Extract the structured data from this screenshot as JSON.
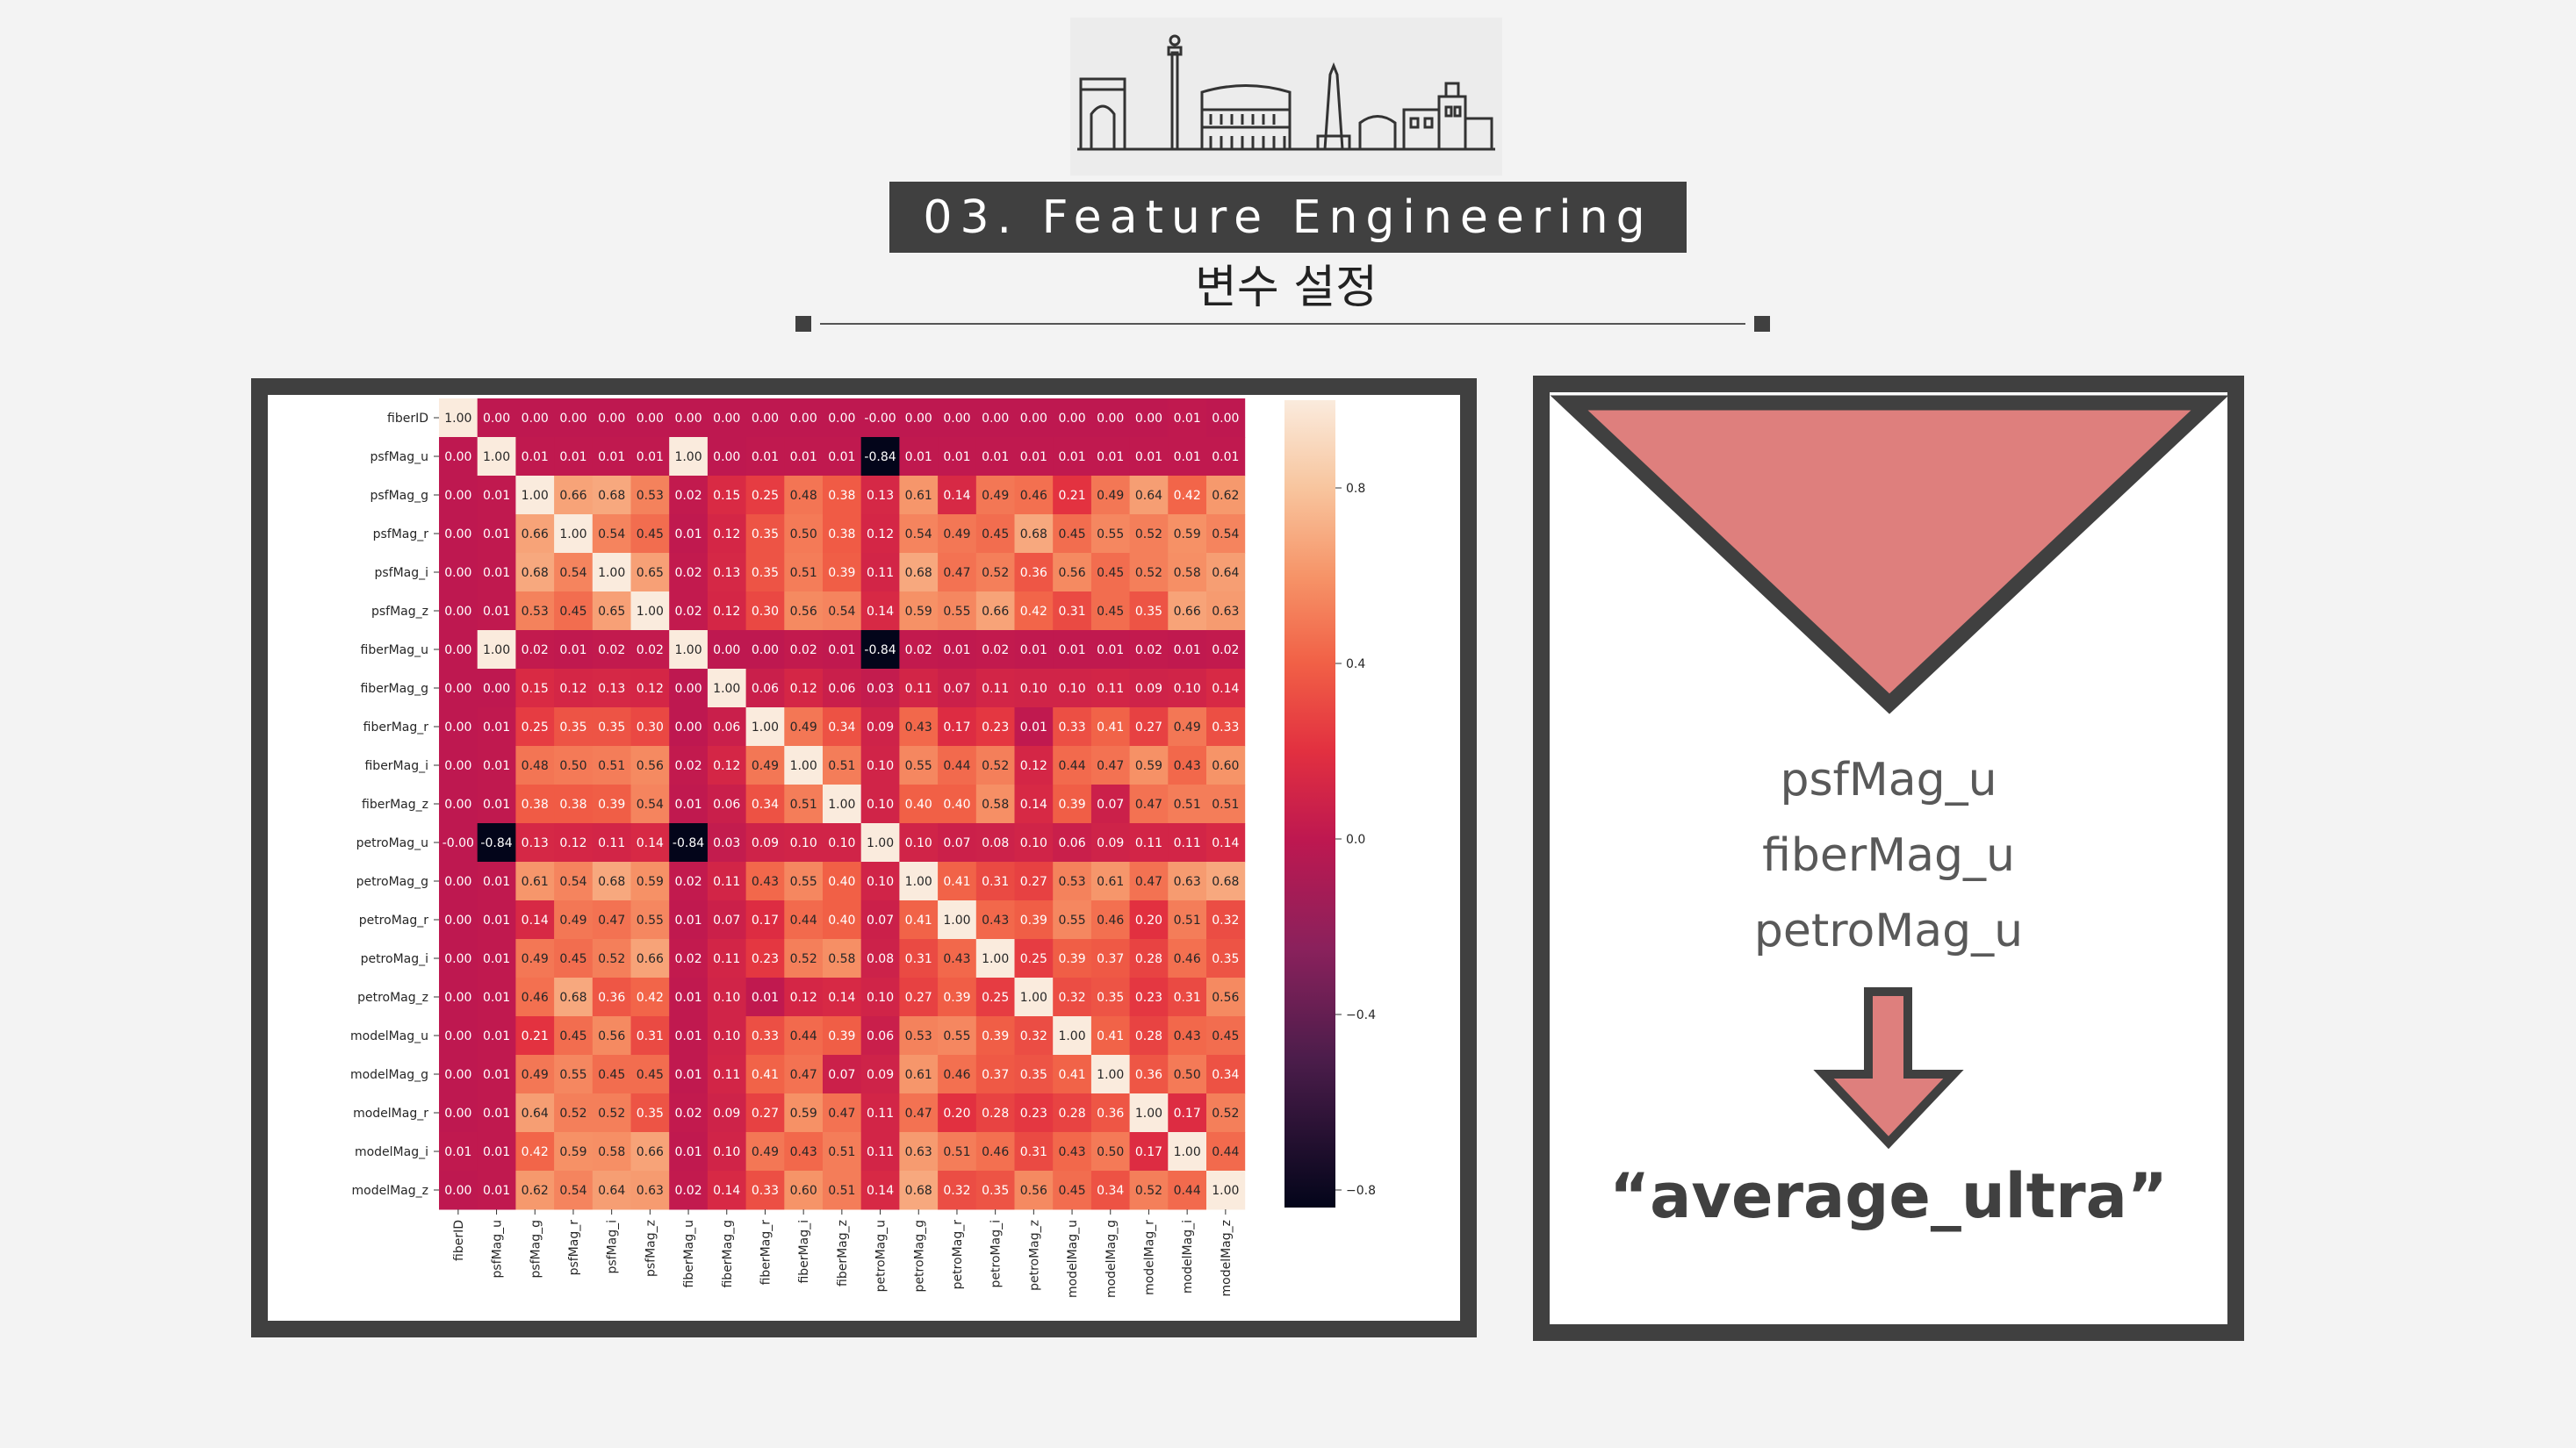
{
  "slide": {
    "section_title": "03. Feature Engineering",
    "subtitle": "변수 설정"
  },
  "right_panel": {
    "variables": [
      "psfMag_u",
      "fiberMag_u",
      "petroMag_u"
    ],
    "result": "“average_ultra”",
    "accent_color": "#de7f7d",
    "frame_color": "#404040"
  },
  "chart_data": {
    "type": "heatmap",
    "title": "",
    "labels": [
      "fiberID",
      "psfMag_u",
      "psfMag_g",
      "psfMag_r",
      "psfMag_i",
      "psfMag_z",
      "fiberMag_u",
      "fiberMag_g",
      "fiberMag_r",
      "fiberMag_i",
      "fiberMag_z",
      "petroMag_u",
      "petroMag_g",
      "petroMag_r",
      "petroMag_i",
      "petroMag_z",
      "modelMag_u",
      "modelMag_g",
      "modelMag_r",
      "modelMag_i",
      "modelMag_z"
    ],
    "matrix": [
      [
        "1.00",
        "0.00",
        "0.00",
        "0.00",
        "0.00",
        "0.00",
        "0.00",
        "0.00",
        "0.00",
        "0.00",
        "0.00",
        "-0.00",
        "0.00",
        "0.00",
        "0.00",
        "0.00",
        "0.00",
        "0.00",
        "0.00",
        "0.01",
        "0.00"
      ],
      [
        "0.00",
        "1.00",
        "0.01",
        "0.01",
        "0.01",
        "0.01",
        "1.00",
        "0.00",
        "0.01",
        "0.01",
        "0.01",
        "-0.84",
        "0.01",
        "0.01",
        "0.01",
        "0.01",
        "0.01",
        "0.01",
        "0.01",
        "0.01",
        "0.01"
      ],
      [
        "0.00",
        "0.01",
        "1.00",
        "0.66",
        "0.68",
        "0.53",
        "0.02",
        "0.15",
        "0.25",
        "0.48",
        "0.38",
        "0.13",
        "0.61",
        "0.14",
        "0.49",
        "0.46",
        "0.21",
        "0.49",
        "0.64",
        "0.42",
        "0.62"
      ],
      [
        "0.00",
        "0.01",
        "0.66",
        "1.00",
        "0.54",
        "0.45",
        "0.01",
        "0.12",
        "0.35",
        "0.50",
        "0.38",
        "0.12",
        "0.54",
        "0.49",
        "0.45",
        "0.68",
        "0.45",
        "0.55",
        "0.52",
        "0.59",
        "0.54"
      ],
      [
        "0.00",
        "0.01",
        "0.68",
        "0.54",
        "1.00",
        "0.65",
        "0.02",
        "0.13",
        "0.35",
        "0.51",
        "0.39",
        "0.11",
        "0.68",
        "0.47",
        "0.52",
        "0.36",
        "0.56",
        "0.45",
        "0.52",
        "0.58",
        "0.64"
      ],
      [
        "0.00",
        "0.01",
        "0.53",
        "0.45",
        "0.65",
        "1.00",
        "0.02",
        "0.12",
        "0.30",
        "0.56",
        "0.54",
        "0.14",
        "0.59",
        "0.55",
        "0.66",
        "0.42",
        "0.31",
        "0.45",
        "0.35",
        "0.66",
        "0.63"
      ],
      [
        "0.00",
        "1.00",
        "0.02",
        "0.01",
        "0.02",
        "0.02",
        "1.00",
        "0.00",
        "0.00",
        "0.02",
        "0.01",
        "-0.84",
        "0.02",
        "0.01",
        "0.02",
        "0.01",
        "0.01",
        "0.01",
        "0.02",
        "0.01",
        "0.02"
      ],
      [
        "0.00",
        "0.00",
        "0.15",
        "0.12",
        "0.13",
        "0.12",
        "0.00",
        "1.00",
        "0.06",
        "0.12",
        "0.06",
        "0.03",
        "0.11",
        "0.07",
        "0.11",
        "0.10",
        "0.10",
        "0.11",
        "0.09",
        "0.10",
        "0.14"
      ],
      [
        "0.00",
        "0.01",
        "0.25",
        "0.35",
        "0.35",
        "0.30",
        "0.00",
        "0.06",
        "1.00",
        "0.49",
        "0.34",
        "0.09",
        "0.43",
        "0.17",
        "0.23",
        "0.01",
        "0.33",
        "0.41",
        "0.27",
        "0.49",
        "0.33"
      ],
      [
        "0.00",
        "0.01",
        "0.48",
        "0.50",
        "0.51",
        "0.56",
        "0.02",
        "0.12",
        "0.49",
        "1.00",
        "0.51",
        "0.10",
        "0.55",
        "0.44",
        "0.52",
        "0.12",
        "0.44",
        "0.47",
        "0.59",
        "0.43",
        "0.60"
      ],
      [
        "0.00",
        "0.01",
        "0.38",
        "0.38",
        "0.39",
        "0.54",
        "0.01",
        "0.06",
        "0.34",
        "0.51",
        "1.00",
        "0.10",
        "0.40",
        "0.40",
        "0.58",
        "0.14",
        "0.39",
        "0.07",
        "0.47",
        "0.51",
        "0.51"
      ],
      [
        "-0.00",
        "-0.84",
        "0.13",
        "0.12",
        "0.11",
        "0.14",
        "-0.84",
        "0.03",
        "0.09",
        "0.10",
        "0.10",
        "1.00",
        "0.10",
        "0.07",
        "0.08",
        "0.10",
        "0.06",
        "0.09",
        "0.11",
        "0.11",
        "0.14"
      ],
      [
        "0.00",
        "0.01",
        "0.61",
        "0.54",
        "0.68",
        "0.59",
        "0.02",
        "0.11",
        "0.43",
        "0.55",
        "0.40",
        "0.10",
        "1.00",
        "0.41",
        "0.31",
        "0.27",
        "0.53",
        "0.61",
        "0.47",
        "0.63",
        "0.68"
      ],
      [
        "0.00",
        "0.01",
        "0.14",
        "0.49",
        "0.47",
        "0.55",
        "0.01",
        "0.07",
        "0.17",
        "0.44",
        "0.40",
        "0.07",
        "0.41",
        "1.00",
        "0.43",
        "0.39",
        "0.55",
        "0.46",
        "0.20",
        "0.51",
        "0.32"
      ],
      [
        "0.00",
        "0.01",
        "0.49",
        "0.45",
        "0.52",
        "0.66",
        "0.02",
        "0.11",
        "0.23",
        "0.52",
        "0.58",
        "0.08",
        "0.31",
        "0.43",
        "1.00",
        "0.25",
        "0.39",
        "0.37",
        "0.28",
        "0.46",
        "0.35"
      ],
      [
        "0.00",
        "0.01",
        "0.46",
        "0.68",
        "0.36",
        "0.42",
        "0.01",
        "0.10",
        "0.01",
        "0.12",
        "0.14",
        "0.10",
        "0.27",
        "0.39",
        "0.25",
        "1.00",
        "0.32",
        "0.35",
        "0.23",
        "0.31",
        "0.56"
      ],
      [
        "0.00",
        "0.01",
        "0.21",
        "0.45",
        "0.56",
        "0.31",
        "0.01",
        "0.10",
        "0.33",
        "0.44",
        "0.39",
        "0.06",
        "0.53",
        "0.55",
        "0.39",
        "0.32",
        "1.00",
        "0.41",
        "0.28",
        "0.43",
        "0.45"
      ],
      [
        "0.00",
        "0.01",
        "0.49",
        "0.55",
        "0.45",
        "0.45",
        "0.01",
        "0.11",
        "0.41",
        "0.47",
        "0.07",
        "0.09",
        "0.61",
        "0.46",
        "0.37",
        "0.35",
        "0.41",
        "1.00",
        "0.36",
        "0.50",
        "0.34"
      ],
      [
        "0.00",
        "0.01",
        "0.64",
        "0.52",
        "0.52",
        "0.35",
        "0.02",
        "0.09",
        "0.27",
        "0.59",
        "0.47",
        "0.11",
        "0.47",
        "0.20",
        "0.28",
        "0.23",
        "0.28",
        "0.36",
        "1.00",
        "0.17",
        "0.52"
      ],
      [
        "0.01",
        "0.01",
        "0.42",
        "0.59",
        "0.58",
        "0.66",
        "0.01",
        "0.10",
        "0.49",
        "0.43",
        "0.51",
        "0.11",
        "0.63",
        "0.51",
        "0.46",
        "0.31",
        "0.43",
        "0.50",
        "0.17",
        "1.00",
        "0.44"
      ],
      [
        "0.00",
        "0.01",
        "0.62",
        "0.54",
        "0.64",
        "0.63",
        "0.02",
        "0.14",
        "0.33",
        "0.60",
        "0.51",
        "0.14",
        "0.68",
        "0.32",
        "0.35",
        "0.56",
        "0.45",
        "0.34",
        "0.52",
        "0.44",
        "1.00"
      ]
    ],
    "colorbar_ticks": [
      "0.8",
      "0.4",
      "0.0",
      "−0.4",
      "−0.8"
    ],
    "vmin": -0.84,
    "vmax": 1.0,
    "colormap": "rocket"
  }
}
